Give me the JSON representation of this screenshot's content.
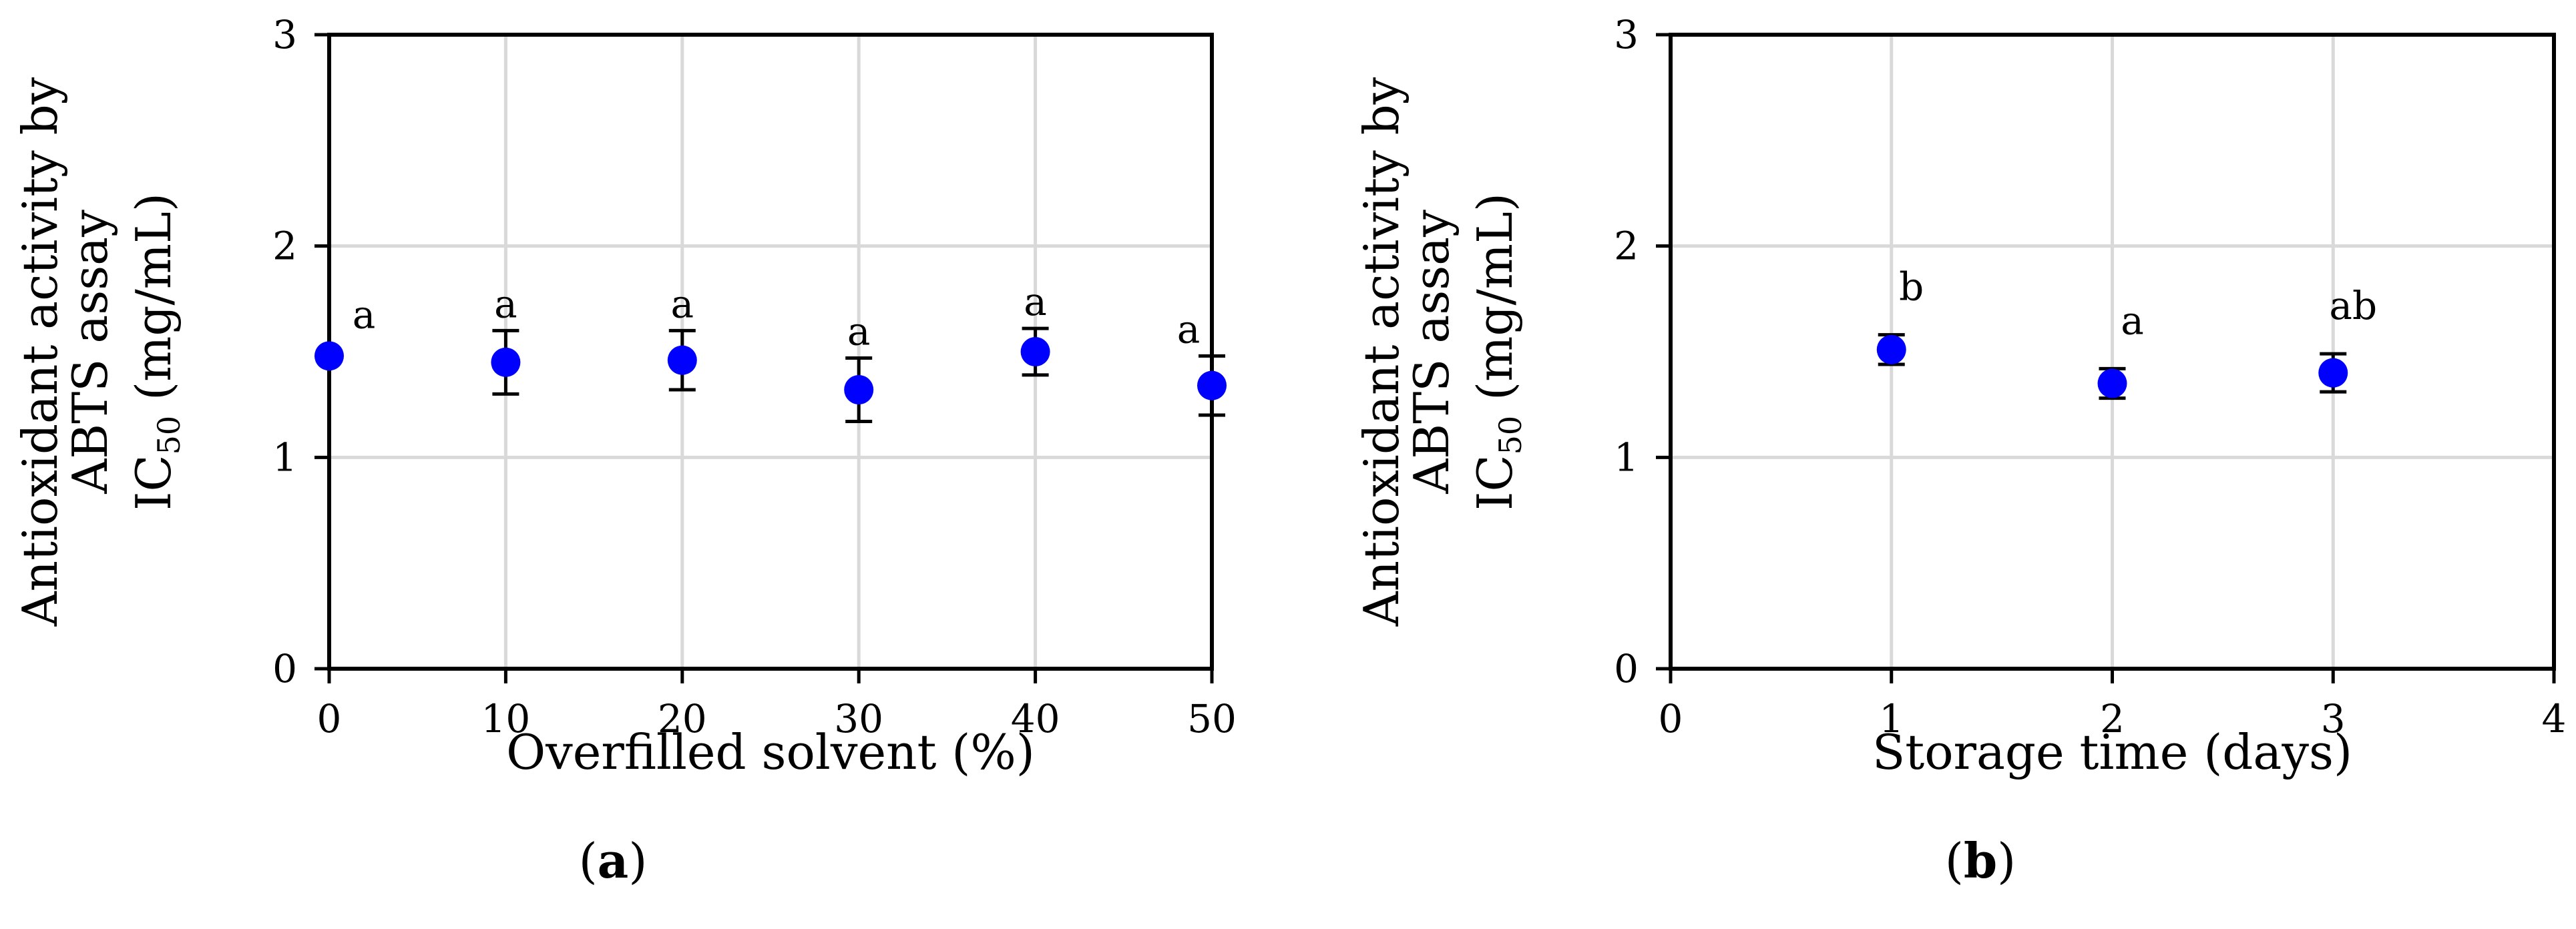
{
  "chart_data": [
    {
      "panel_label": "a",
      "type": "scatter",
      "xlabel": "Overfilled solvent (%)",
      "ylabel_lines": [
        "Antioxidant activity by",
        "ABTS assay"
      ],
      "ylabel_unit_prefix": "IC",
      "ylabel_unit_subscript": "50",
      "ylabel_unit_suffix": " (mg/mL)",
      "xlim": [
        0,
        50
      ],
      "ylim": [
        0,
        3
      ],
      "x_ticks": [
        0,
        10,
        20,
        30,
        40,
        50
      ],
      "y_ticks": [
        0,
        1,
        2,
        3
      ],
      "grid": "vertical-and-horizontal",
      "marker_color": "#0000ff",
      "points": [
        {
          "x": 0,
          "y": 1.48,
          "err": 0.0,
          "label": "a"
        },
        {
          "x": 10,
          "y": 1.45,
          "err": 0.15,
          "label": "a"
        },
        {
          "x": 20,
          "y": 1.46,
          "err": 0.14,
          "label": "a"
        },
        {
          "x": 30,
          "y": 1.32,
          "err": 0.15,
          "label": "a"
        },
        {
          "x": 40,
          "y": 1.5,
          "err": 0.11,
          "label": "a"
        },
        {
          "x": 50,
          "y": 1.34,
          "err": 0.14,
          "label": "a"
        }
      ]
    },
    {
      "panel_label": "b",
      "type": "scatter",
      "xlabel": "Storage time (days)",
      "ylabel_lines": [
        "Antioxidant activity by",
        "ABTS assay"
      ],
      "ylabel_unit_prefix": "IC",
      "ylabel_unit_subscript": "50",
      "ylabel_unit_suffix": " (mg/mL)",
      "xlim": [
        0,
        4
      ],
      "ylim": [
        0,
        3
      ],
      "x_ticks": [
        0,
        1,
        2,
        3,
        4
      ],
      "y_ticks": [
        0,
        1,
        2,
        3
      ],
      "grid": "vertical-and-horizontal",
      "marker_color": "#0000ff",
      "points": [
        {
          "x": 1,
          "y": 1.51,
          "err": 0.07,
          "label": "b"
        },
        {
          "x": 2,
          "y": 1.35,
          "err": 0.07,
          "label": "a"
        },
        {
          "x": 3,
          "y": 1.4,
          "err": 0.09,
          "label": "ab"
        }
      ]
    }
  ]
}
